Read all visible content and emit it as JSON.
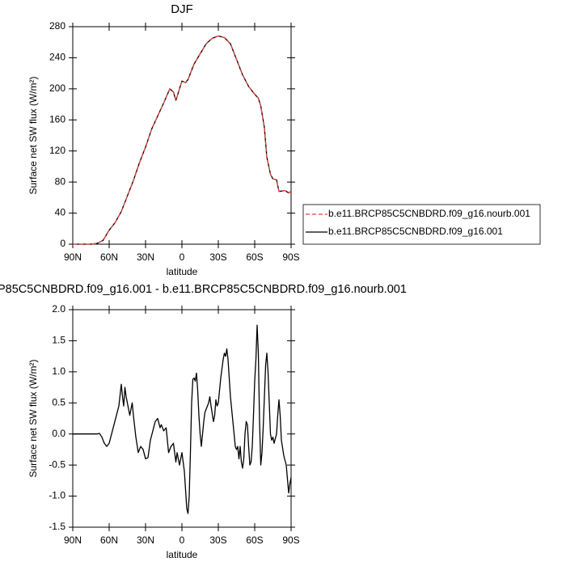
{
  "chart_data": [
    {
      "type": "line",
      "title": "DJF",
      "xlabel": "latitude",
      "ylabel": "Surface net SW flux (W/m²)",
      "xlim": [
        90,
        -90
      ],
      "xticks": [
        {
          "value": 90,
          "label": "90N"
        },
        {
          "value": 60,
          "label": "60N"
        },
        {
          "value": 30,
          "label": "30N"
        },
        0,
        {
          "value": -30,
          "label": "30S"
        },
        {
          "value": -60,
          "label": "60S"
        },
        {
          "value": -90,
          "label": "90S"
        }
      ],
      "ylim": [
        0,
        280
      ],
      "yticks": [
        0,
        40,
        80,
        120,
        160,
        200,
        240,
        280
      ],
      "legend": "right",
      "x": [
        90,
        85,
        80,
        75,
        70,
        65,
        60,
        55,
        50,
        45,
        40,
        35,
        30,
        25,
        20,
        15,
        10,
        7,
        5,
        2,
        0,
        -3,
        -5,
        -10,
        -15,
        -20,
        -25,
        -30,
        -35,
        -40,
        -45,
        -50,
        -55,
        -60,
        -63,
        -65,
        -68,
        -70,
        -73,
        -75,
        -78,
        -80,
        -85,
        -88,
        -90
      ],
      "series": [
        {
          "name": "b.e11.BRCP85C5CNBDRD.f09_g16.nourb.001",
          "color": "#e8413c",
          "dashed": true,
          "values": [
            0,
            0,
            0,
            0,
            1,
            5,
            18,
            28,
            42,
            62,
            82,
            105,
            125,
            148,
            165,
            182,
            200,
            196,
            185,
            200,
            210,
            208,
            212,
            232,
            245,
            258,
            265,
            268,
            266,
            258,
            238,
            218,
            203,
            193,
            188,
            178,
            150,
            112,
            90,
            84,
            83,
            68,
            69,
            66,
            68
          ]
        },
        {
          "name": "b.e11.BRCP85C5CNBDRD.f09_g16.001",
          "color": "#000000",
          "dashed": false,
          "values": [
            0,
            0,
            0,
            0,
            1,
            5,
            18,
            28,
            42,
            62,
            82,
            105,
            125,
            148,
            165,
            182,
            200,
            196,
            185,
            200,
            210,
            208,
            212,
            232,
            245,
            258,
            265,
            268,
            266,
            258,
            238,
            218,
            203,
            193,
            188,
            178,
            150,
            112,
            90,
            84,
            83,
            68,
            69,
            66,
            68
          ]
        }
      ]
    },
    {
      "type": "line",
      "title": "P85C5CNBDRD.f09_g16.001 - b.e11.BRCP85C5CNBDRD.f09_g16.nourb.001",
      "xlabel": "latitude",
      "ylabel": "Surface net SW flux (W/m²)",
      "xlim": [
        90,
        -90
      ],
      "xticks": [
        {
          "value": 90,
          "label": "90N"
        },
        {
          "value": 60,
          "label": "60N"
        },
        {
          "value": 30,
          "label": "30N"
        },
        0,
        {
          "value": -30,
          "label": "30S"
        },
        {
          "value": -60,
          "label": "60S"
        },
        {
          "value": -90,
          "label": "90S"
        }
      ],
      "ylim": [
        -1.5,
        2
      ],
      "yticks": [
        -1.5,
        {
          "value": -1,
          "label": "-1.0"
        },
        -0.5,
        {
          "value": 0,
          "label": "0.0"
        },
        0.5,
        {
          "value": 1,
          "label": "1.0"
        },
        1.5,
        {
          "value": 2,
          "label": "2.0"
        }
      ],
      "x": [
        90,
        70,
        68,
        66,
        64,
        62,
        60,
        58,
        56,
        54,
        52,
        50,
        49,
        48,
        47,
        46,
        45,
        43,
        41,
        40,
        38,
        36,
        34,
        32,
        30,
        28,
        26,
        24,
        22,
        20,
        18,
        17,
        15,
        13,
        11,
        9,
        7,
        5,
        4,
        2,
        0,
        -2,
        -4,
        -5,
        -6,
        -7,
        -8,
        -9,
        -10,
        -11,
        -12,
        -13,
        -14,
        -15,
        -16,
        -17,
        -18,
        -19,
        -20,
        -22,
        -23,
        -24,
        -26,
        -27,
        -28,
        -29,
        -30,
        -32,
        -34,
        -35,
        -36,
        -37,
        -38,
        -40,
        -42,
        -43,
        -44,
        -45,
        -46,
        -47,
        -48,
        -49,
        -50,
        -51,
        -52,
        -53,
        -54,
        -55,
        -56,
        -57,
        -58,
        -59,
        -60,
        -61,
        -62,
        -63,
        -64,
        -65,
        -66,
        -67,
        -68,
        -69,
        -70,
        -71,
        -72,
        -73,
        -74,
        -75,
        -76,
        -78,
        -79,
        -80,
        -81,
        -82,
        -84,
        -86,
        -88,
        -89,
        -90
      ],
      "color": "#000000",
      "values": [
        0,
        0,
        0.01,
        -0.05,
        -0.15,
        -0.2,
        -0.15,
        0,
        0.15,
        0.3,
        0.45,
        0.8,
        0.6,
        0.45,
        0.75,
        0.6,
        0.5,
        0.3,
        0.5,
        0.3,
        -0.05,
        -0.3,
        -0.2,
        -0.25,
        -0.4,
        -0.38,
        -0.1,
        0.05,
        0.2,
        0.25,
        0.1,
        0.15,
        0.05,
        0.1,
        -0.3,
        -0.2,
        -0.15,
        -0.45,
        -0.3,
        -0.5,
        -0.3,
        -0.6,
        -1.2,
        -1.28,
        -1,
        -0.3,
        0.5,
        0.88,
        0.9,
        0.85,
        0.98,
        0.7,
        0.3,
        0,
        -0.2,
        0,
        0.2,
        0.35,
        0.4,
        0.5,
        0.6,
        0.45,
        0.2,
        0.3,
        0.55,
        0.45,
        0.5,
        0.9,
        1.2,
        1.3,
        1.25,
        1.37,
        1.2,
        0.6,
        0.2,
        0,
        -0.2,
        -0.25,
        -0.2,
        -0.4,
        -0.2,
        -0.45,
        -0.55,
        -0.4,
        0,
        0.2,
        0.15,
        -0.2,
        -0.5,
        -0.45,
        -0.2,
        0.3,
        0.85,
        1.2,
        1.75,
        1.3,
        0.2,
        -0.5,
        -0.3,
        0.1,
        0.6,
        1.1,
        1.3,
        1,
        0.5,
        0,
        -0.1,
        -0.05,
        -0.15,
        0,
        0.3,
        0.55,
        0.3,
        -0.1,
        -0.35,
        -0.5,
        -0.95,
        -0.8,
        -0.7
      ]
    }
  ]
}
